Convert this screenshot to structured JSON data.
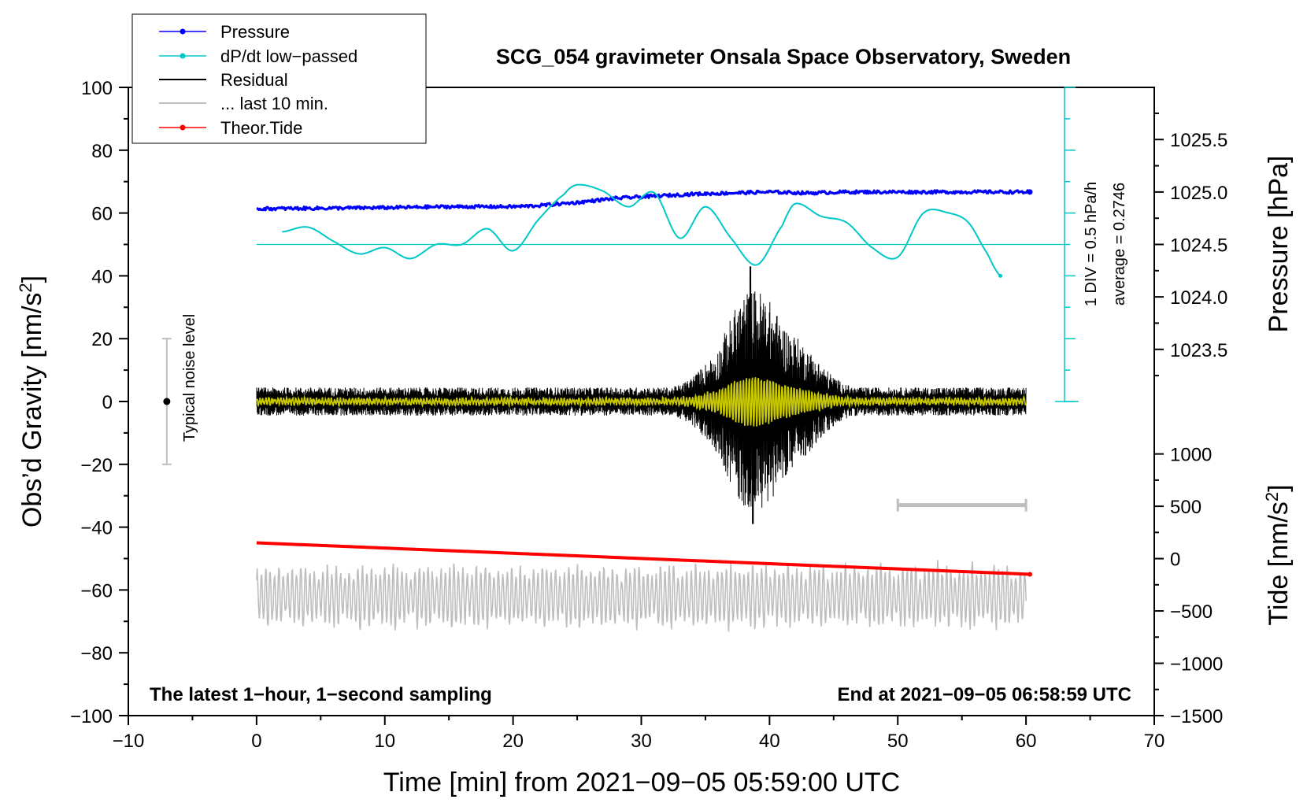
{
  "chart_data": {
    "type": "line",
    "title": "SCG_054 gravimeter Onsala Space Observatory, Sweden",
    "xlabel": "Time [min] from 2021−09−05 05:59:00 UTC",
    "ylabel_left": "Obs’d Gravity [nm/s",
    "ylabel_left_sup": "2",
    "ylabel_left_end": "]",
    "ylabel_right_top": "Pressure [hPa]",
    "ylabel_right_bottom": "Tide [nm/s",
    "ylabel_right_bottom_sup": "2",
    "ylabel_right_bottom_end": "]",
    "xlim": [
      -10,
      70
    ],
    "ylim": [
      -100,
      100
    ],
    "x_ticks": [
      -10,
      0,
      10,
      20,
      30,
      40,
      50,
      60,
      70
    ],
    "x_tick_labels": [
      "−10",
      "0",
      "10",
      "20",
      "30",
      "40",
      "50",
      "60",
      "70"
    ],
    "y_ticks": [
      100,
      80,
      60,
      40,
      20,
      0,
      -20,
      -40,
      -60,
      -80,
      -100
    ],
    "y_tick_labels": [
      "100",
      "80",
      "60",
      "40",
      "20",
      "0",
      "−20",
      "−40",
      "−60",
      "−80",
      "−100"
    ],
    "pressure_axis": {
      "ticks": [
        1025.5,
        1025.0,
        1024.5,
        1024.0,
        1023.5
      ],
      "tick_labels": [
        "1025.5",
        "1025.0",
        "1024.5",
        "1024.0",
        "1023.5"
      ],
      "gravity_equiv": [
        [
          1025.0,
          66.7
        ],
        [
          1024.0,
          33.3
        ]
      ]
    },
    "tide_axis": {
      "ticks": [
        1000,
        500,
        0,
        -500,
        -1000,
        -1500
      ],
      "tick_labels": [
        "1000",
        "500",
        "0",
        "−500",
        "−1000",
        "−1500"
      ],
      "gravity_equiv": [
        [
          1000,
          -16.7
        ],
        [
          -1500,
          -100
        ]
      ]
    },
    "legend": [
      {
        "label": "Pressure",
        "color": "#0000ff",
        "marker": true
      },
      {
        "label": "dP/dt low−passed",
        "color": "#00c8c8",
        "marker": true
      },
      {
        "label": "Residual",
        "color": "#000000",
        "marker": false
      },
      {
        "label": "... last 10 min.",
        "color": "#bebebe",
        "marker": false
      },
      {
        "label": "Theor.Tide",
        "color": "#ff0000",
        "marker": true
      }
    ],
    "series": [
      {
        "name": "Pressure",
        "color": "#0000ff",
        "unit": "hPa",
        "x": [
          0,
          5,
          10,
          15,
          20,
          22,
          25,
          28,
          31,
          34,
          37,
          40,
          43,
          46,
          50,
          55,
          58,
          60.3
        ],
        "values": [
          1024.84,
          1024.845,
          1024.85,
          1024.86,
          1024.86,
          1024.87,
          1024.9,
          1024.94,
          1024.96,
          1024.98,
          1024.99,
          1025.0,
          1024.99,
          1025.0,
          1025.0,
          1025.0,
          1025.0,
          1025.0
        ]
      },
      {
        "name": "dP/dt low−passed",
        "color": "#00c8c8",
        "unit": "gravity-units (1 DIV = 0.5 hPa/h, zero at 50)",
        "x": [
          2,
          4,
          6,
          8,
          10,
          12,
          14,
          16,
          18,
          20,
          22,
          24,
          25,
          27,
          29,
          31,
          33,
          35,
          37,
          39,
          41,
          42,
          44,
          46,
          48,
          50,
          52,
          54,
          55.5,
          57,
          58
        ],
        "values": [
          54,
          55.5,
          51,
          47,
          49,
          45.5,
          50,
          50,
          55,
          48,
          58,
          66,
          69,
          67,
          62,
          66.5,
          52,
          62,
          52,
          43.5,
          56,
          63,
          59,
          57,
          49,
          46,
          60,
          60,
          57,
          47,
          40
        ]
      },
      {
        "name": "Residual",
        "color": "#000000",
        "unit": "nm/s2",
        "x": [
          0,
          60
        ],
        "envelope_peak": 43,
        "envelope_peak_x": 38.5,
        "envelope_min": -39
      },
      {
        "name": "Residual (low-passed)",
        "color": "#c8c800",
        "unit": "nm/s2",
        "x": [
          0,
          60
        ]
      },
      {
        "name": "... last 10 min.",
        "color": "#bebebe",
        "unit": "nm/s2",
        "x": [
          0,
          60
        ]
      },
      {
        "name": "Theor.Tide",
        "color": "#ff0000",
        "unit": "nm/s2",
        "x": [
          0,
          60.3
        ],
        "values": [
          -45,
          -55
        ]
      }
    ],
    "zero_line": {
      "value": 50,
      "color": "#00c8c8",
      "x_range": [
        0,
        63
      ]
    },
    "ten_min_bar": {
      "x_range": [
        50,
        60
      ],
      "y": -33
    },
    "noise_bar": {
      "x": -7,
      "y_center": 0,
      "y_range": [
        -20,
        20
      ]
    },
    "annotations": {
      "noise_level": "Typical noise level",
      "div_note": "1 DIV = 0.5 hPa/h",
      "average_note": "average = 0.2746",
      "footer_left": "The latest 1−hour, 1−second sampling",
      "footer_right": "End at 2021−09−05 06:58:59 UTC"
    }
  }
}
